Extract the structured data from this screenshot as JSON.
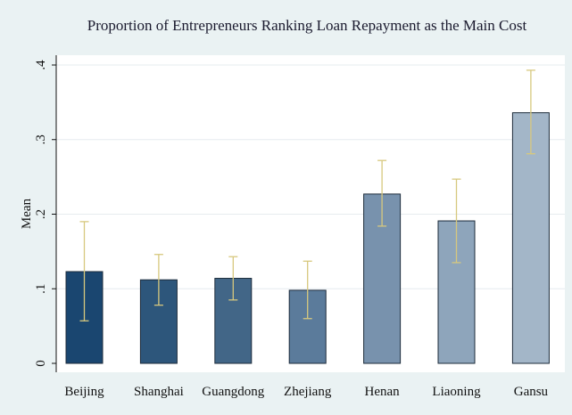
{
  "chart_data": {
    "type": "bar",
    "title": "Proportion of Entrepreneurs Ranking Loan Repayment as the Main Cost",
    "xlabel": "",
    "ylabel": "Mean",
    "ylim": [
      0,
      0.4
    ],
    "y_ticks": [
      0,
      0.1,
      0.2,
      0.3,
      0.4
    ],
    "y_tick_labels": [
      "0",
      ".1",
      ".2",
      ".3",
      ".4"
    ],
    "grid": true,
    "categories": [
      "Beijing",
      "Shanghai",
      "Guangdong",
      "Zhejiang",
      "Henan",
      "Liaoning",
      "Gansu"
    ],
    "values": [
      0.123,
      0.112,
      0.114,
      0.098,
      0.227,
      0.191,
      0.336
    ],
    "error_low": [
      0.057,
      0.078,
      0.085,
      0.06,
      0.184,
      0.135,
      0.281
    ],
    "error_high": [
      0.19,
      0.146,
      0.143,
      0.137,
      0.272,
      0.247,
      0.393
    ],
    "colors": [
      "#1a4670",
      "#2d567b",
      "#426687",
      "#5b7b9b",
      "#7892ad",
      "#8ea5bb",
      "#a3b6c8"
    ],
    "error_bar_color": "#d7c87e",
    "bar_stroke_color": "#1c2b3a"
  }
}
